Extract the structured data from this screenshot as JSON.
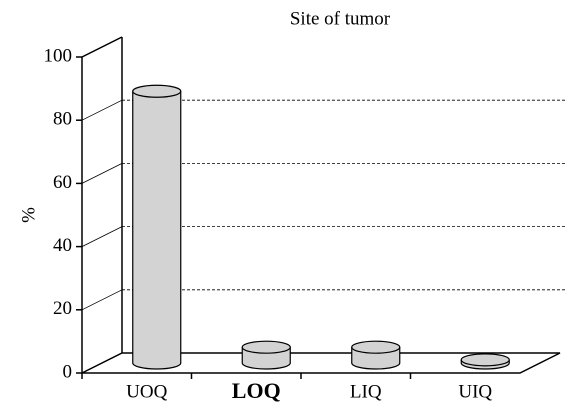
{
  "chart_data": {
    "type": "bar3d",
    "title": "Site of tumor",
    "ylabel": "%",
    "categories": [
      "UOQ",
      "LOQ",
      "LIQ",
      "UIQ"
    ],
    "values": [
      86,
      5,
      5,
      1
    ],
    "color": "#d3d3d3",
    "ylim": [
      0,
      100
    ],
    "yticks": [
      0,
      20,
      40,
      60,
      80,
      100
    ],
    "grid": true
  }
}
